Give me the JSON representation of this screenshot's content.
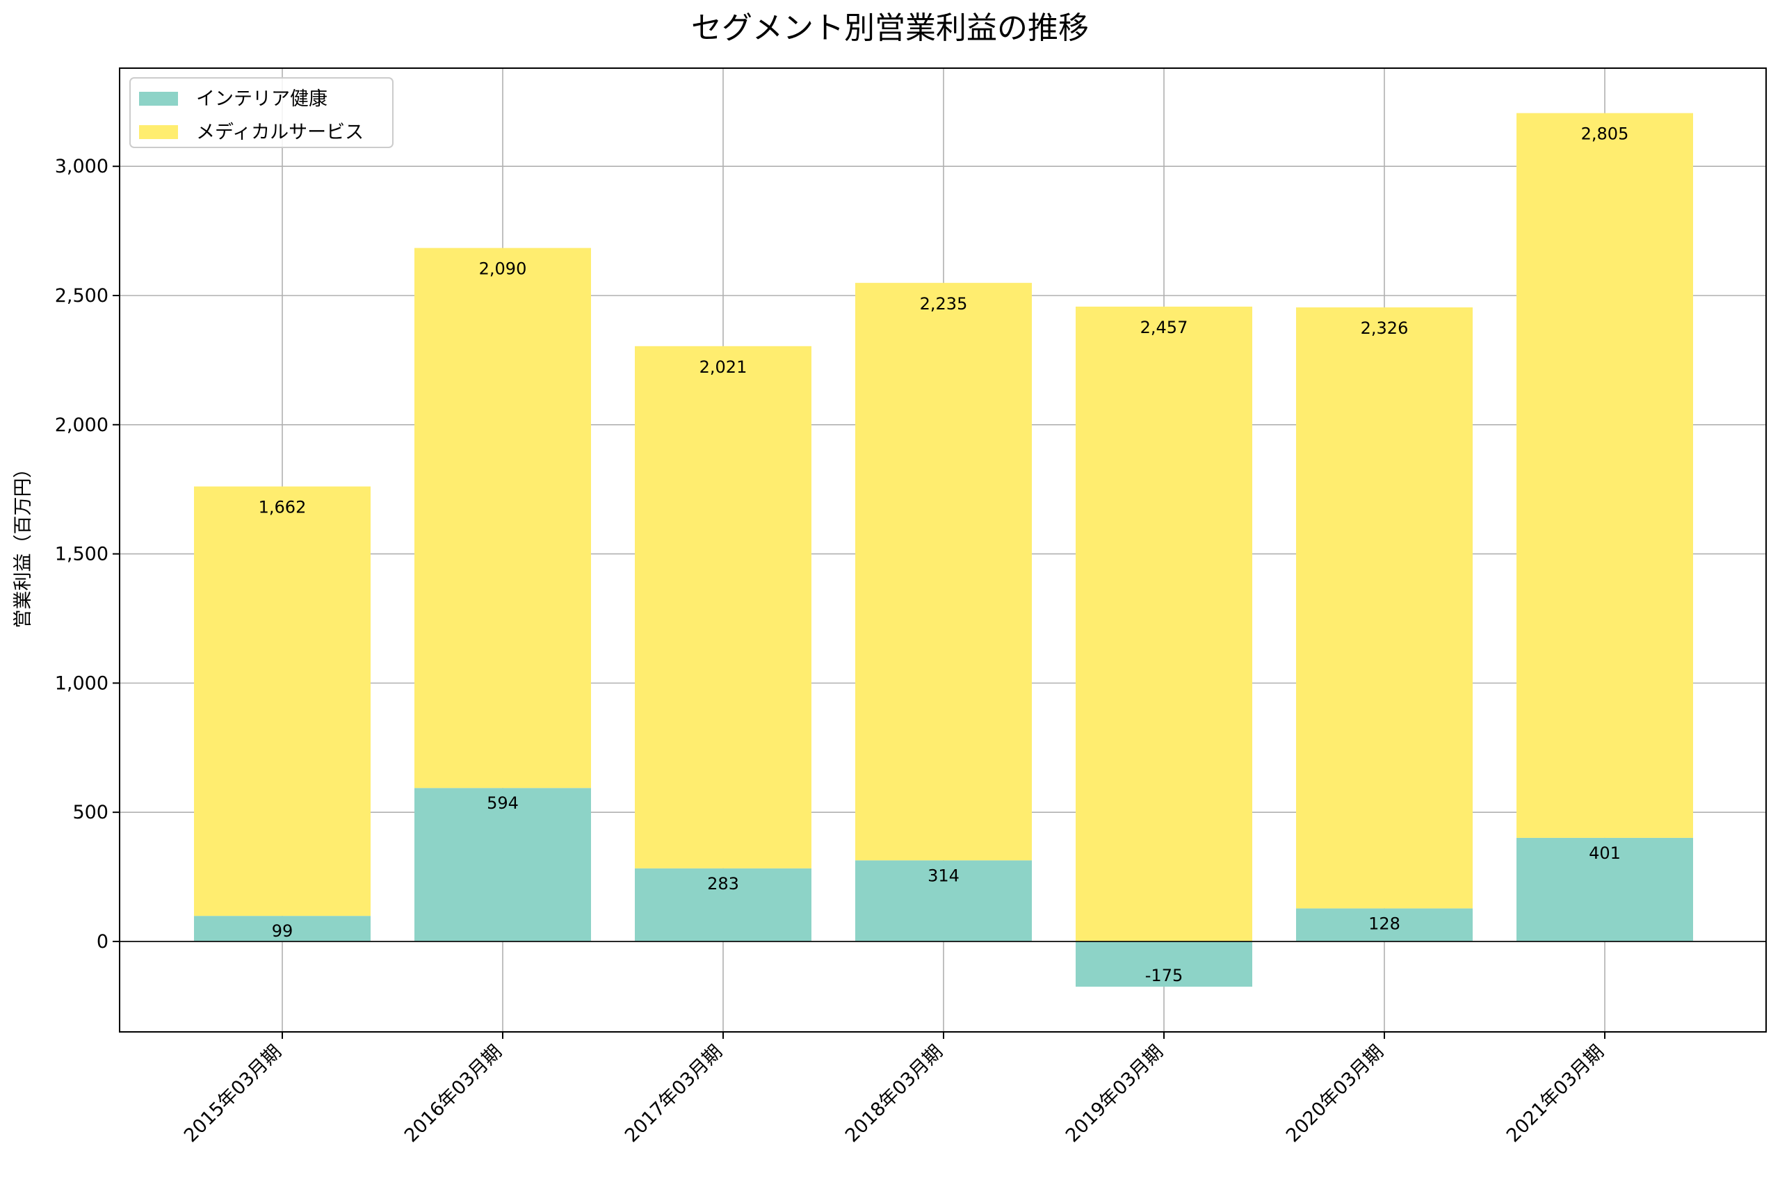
{
  "chart_data": {
    "type": "bar",
    "stacked": true,
    "title": "セグメント別営業利益の推移",
    "xlabel": "",
    "ylabel": "営業利益（百万円）",
    "categories": [
      "2015年03月期",
      "2016年03月期",
      "2017年03月期",
      "2018年03月期",
      "2019年03月期",
      "2020年03月期",
      "2021年03月期"
    ],
    "series": [
      {
        "name": "インテリア健康",
        "color": "#8dd3c7",
        "values": [
          99,
          594,
          283,
          314,
          -175,
          128,
          401
        ]
      },
      {
        "name": "メディカルサービス",
        "color": "#ffed6f",
        "values": [
          1662,
          2090,
          2021,
          2235,
          2457,
          2326,
          2805
        ]
      }
    ],
    "ylim": [
      -350,
      3380
    ],
    "yticks": [
      0,
      500,
      1000,
      1500,
      2000,
      2500,
      3000
    ],
    "ytick_labels": [
      "0",
      "500",
      "1,000",
      "1,500",
      "2,000",
      "2,500",
      "3,000"
    ],
    "grid": true,
    "legend_position": "top-left"
  }
}
